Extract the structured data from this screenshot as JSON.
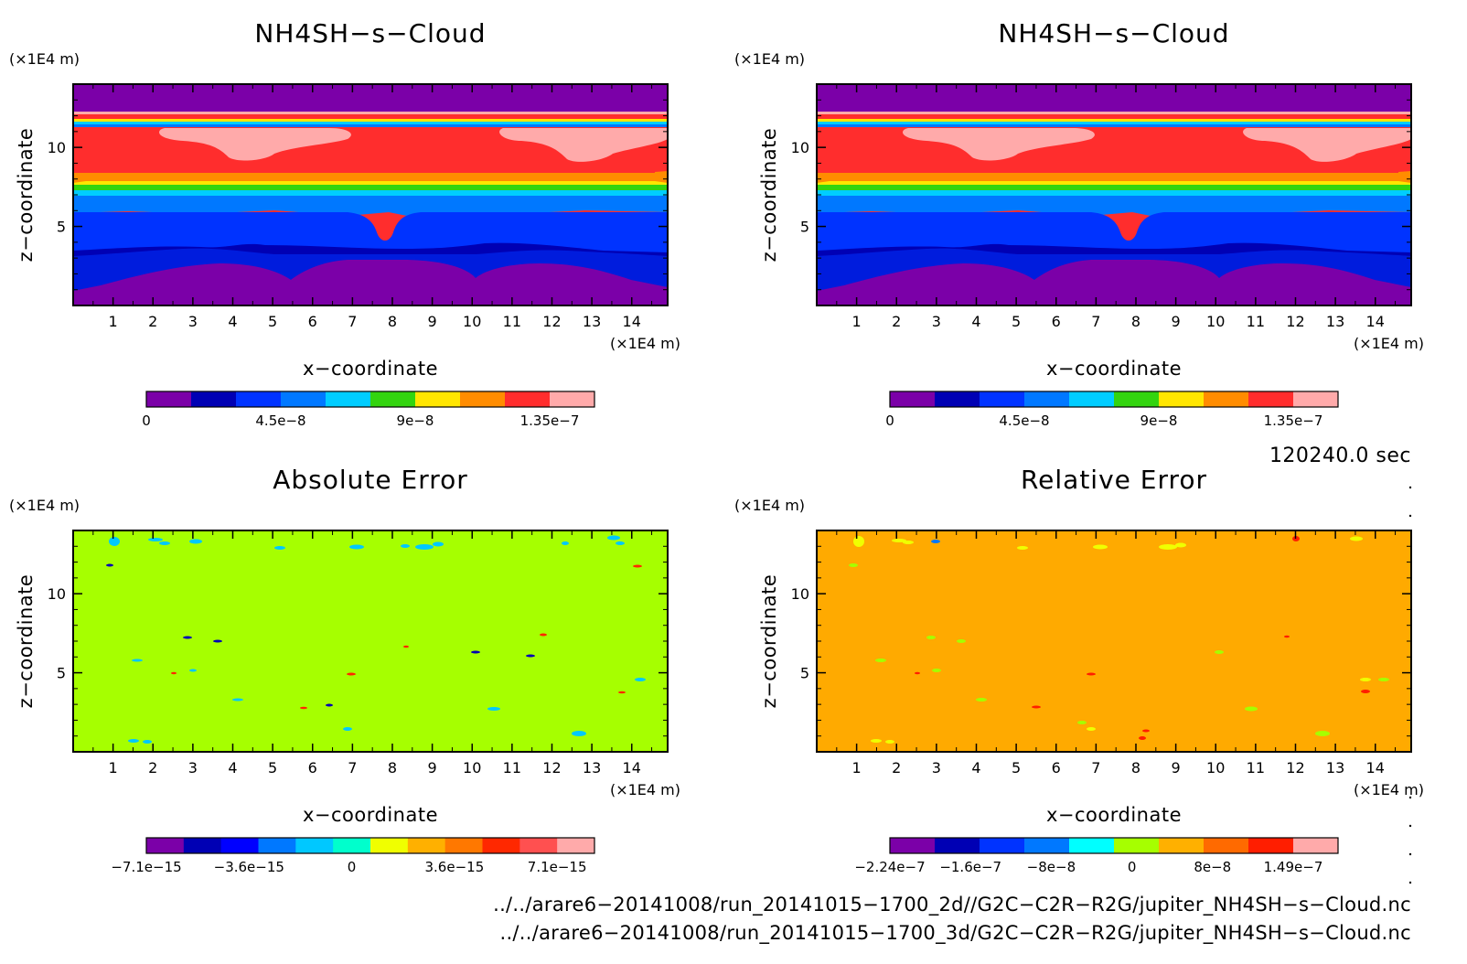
{
  "chart_data": [
    {
      "type": "heatmap",
      "title": "NH4SH−s−Cloud",
      "xlabel": "x−coordinate",
      "ylabel": "z−coordinate",
      "x_unit": "(×1E4 m)",
      "y_unit": "(×1E4 m)",
      "xlim": [
        0,
        14.9
      ],
      "ylim": [
        0,
        14
      ],
      "x_ticks": [
        "1",
        "2",
        "3",
        "4",
        "5",
        "6",
        "7",
        "8",
        "9",
        "10",
        "11",
        "12",
        "13",
        "14"
      ],
      "y_ticks": [
        "5",
        "10"
      ],
      "colorbar": {
        "colors": [
          "#7b00a8",
          "#0000b4",
          "#0033ff",
          "#0078ff",
          "#00cdff",
          "#33d40f",
          "#ffe600",
          "#ff8c00",
          "#ff2d2d",
          "#ffaaaa"
        ],
        "tick_labels": [
          "0",
          "4.5e−8",
          "9e−8",
          "1.35e−7"
        ]
      },
      "field": "vertical layering: ~0 near top (above 14), high values (~1.35e-7 to 1.49e-7) between z≈8 and 12.5, decreasing to ~4.5e-8 around z≈5, ~0 near bottom"
    },
    {
      "type": "heatmap",
      "title": "NH4SH−s−Cloud",
      "xlabel": "x−coordinate",
      "ylabel": "z−coordinate",
      "x_unit": "(×1E4 m)",
      "y_unit": "(×1E4 m)",
      "xlim": [
        0,
        14.9
      ],
      "ylim": [
        0,
        14
      ],
      "x_ticks": [
        "1",
        "2",
        "3",
        "4",
        "5",
        "6",
        "7",
        "8",
        "9",
        "10",
        "11",
        "12",
        "13",
        "14"
      ],
      "y_ticks": [
        "5",
        "10"
      ],
      "colorbar": {
        "colors": [
          "#7b00a8",
          "#0000b4",
          "#0033ff",
          "#0078ff",
          "#00cdff",
          "#33d40f",
          "#ffe600",
          "#ff8c00",
          "#ff2d2d",
          "#ffaaaa"
        ],
        "tick_labels": [
          "0",
          "4.5e−8",
          "9e−8",
          "1.35e−7"
        ]
      },
      "field": "identical to left panel"
    },
    {
      "type": "heatmap",
      "title": "Absolute Error",
      "xlabel": "x−coordinate",
      "ylabel": "z−coordinate",
      "x_unit": "(×1E4 m)",
      "y_unit": "(×1E4 m)",
      "xlim": [
        0,
        14.9
      ],
      "ylim": [
        0,
        14
      ],
      "x_ticks": [
        "1",
        "2",
        "3",
        "4",
        "5",
        "6",
        "7",
        "8",
        "9",
        "10",
        "11",
        "12",
        "13",
        "14"
      ],
      "y_ticks": [
        "5",
        "10"
      ],
      "background_color": "#a6ff00",
      "colorbar": {
        "colors": [
          "#7b00a8",
          "#0000b4",
          "#0000ff",
          "#0078ff",
          "#00c8ff",
          "#00ffcc",
          "#f0ff00",
          "#ffb000",
          "#ff7800",
          "#ff2800",
          "#ff5050",
          "#ffaaaa"
        ],
        "tick_labels": [
          "−7.1e−15",
          "−3.6e−15",
          "0",
          "3.6e−15",
          "7.1e−15"
        ]
      },
      "field": "near zero everywhere (yellow-green) with small scattered cyan and red speckles"
    },
    {
      "type": "heatmap",
      "title": "Relative Error",
      "xlabel": "x−coordinate",
      "ylabel": "z−coordinate",
      "x_unit": "(×1E4 m)",
      "y_unit": "(×1E4 m)",
      "xlim": [
        0,
        14.9
      ],
      "ylim": [
        0,
        14
      ],
      "x_ticks": [
        "1",
        "2",
        "3",
        "4",
        "5",
        "6",
        "7",
        "8",
        "9",
        "10",
        "11",
        "12",
        "13",
        "14"
      ],
      "y_ticks": [
        "5",
        "10"
      ],
      "background_color": "#ffaa00",
      "colorbar": {
        "colors": [
          "#7b00a8",
          "#0000b4",
          "#0033ff",
          "#0078ff",
          "#00ffff",
          "#a6ff00",
          "#ffb000",
          "#ff6a00",
          "#ff1e00",
          "#ffaaaa"
        ],
        "tick_labels": [
          "−2.24e−7",
          "−1.6e−7",
          "−8e−8",
          "0",
          "8e−8",
          "1.49e−7"
        ]
      },
      "field": "near zero everywhere (orange) with small scattered green, yellow and red speckles"
    }
  ],
  "time_label": "120240.0 sec",
  "file_paths": [
    "../../arare6−20141008/run_20141015−1700_2d//G2C−C2R−R2G/jupiter_NH4SH−s−Cloud.nc",
    "../../arare6−20141008/run_20141015−1700_3d/G2C−C2R−R2G/jupiter_NH4SH−s−Cloud.nc"
  ]
}
